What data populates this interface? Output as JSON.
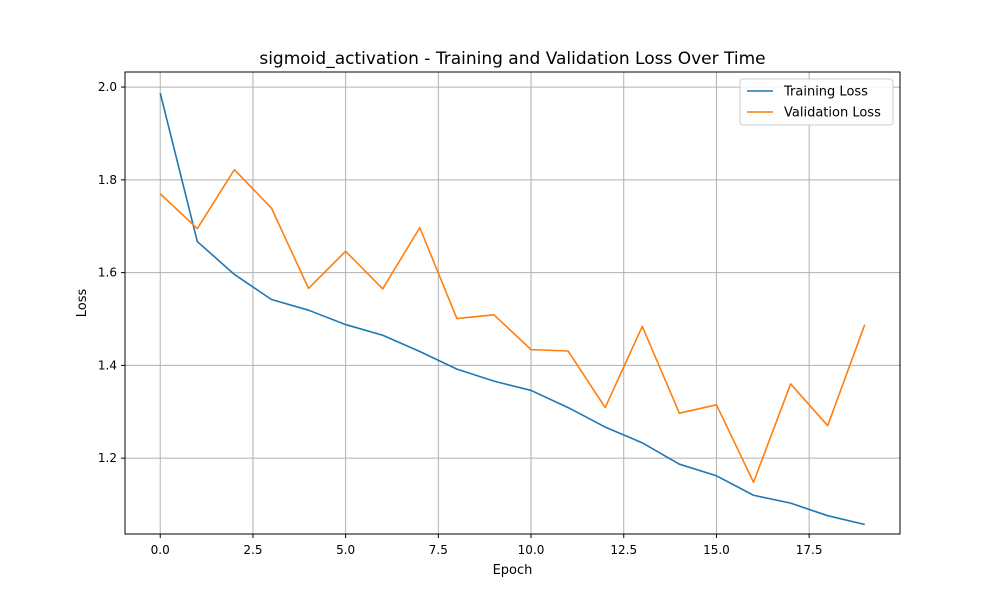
{
  "chart_data": {
    "type": "line",
    "title": "sigmoid_activation - Training and Validation Loss Over Time",
    "xlabel": "Epoch",
    "ylabel": "Loss",
    "xlim": [
      -0.95,
      19.95
    ],
    "ylim": [
      1.0365,
      2.0325
    ],
    "xticks": [
      0,
      2.5,
      5,
      7.5,
      10,
      12.5,
      15,
      17.5
    ],
    "xtick_labels": [
      "0.0",
      "2.5",
      "5.0",
      "7.5",
      "10.0",
      "12.5",
      "15.0",
      "17.5"
    ],
    "yticks": [
      1.2,
      1.4,
      1.6,
      1.8,
      2.0
    ],
    "ytick_labels": [
      "1.2",
      "1.4",
      "1.6",
      "1.8",
      "2.0"
    ],
    "grid": true,
    "legend": "top-right",
    "x": [
      0,
      1,
      2,
      3,
      4,
      5,
      6,
      7,
      8,
      9,
      10,
      11,
      12,
      13,
      14,
      15,
      16,
      17,
      18,
      19
    ],
    "series": [
      {
        "name": "Training Loss",
        "color": "#1f77b4",
        "values": [
          1.987,
          1.667,
          1.596,
          1.542,
          1.519,
          1.488,
          1.465,
          1.43,
          1.392,
          1.366,
          1.346,
          1.309,
          1.267,
          1.233,
          1.187,
          1.162,
          1.12,
          1.103,
          1.076,
          1.057
        ]
      },
      {
        "name": "Validation Loss",
        "color": "#ff7f0e",
        "values": [
          1.77,
          1.695,
          1.822,
          1.739,
          1.566,
          1.646,
          1.565,
          1.697,
          1.501,
          1.509,
          1.434,
          1.431,
          1.309,
          1.484,
          1.297,
          1.315,
          1.148,
          1.36,
          1.27,
          1.488
        ]
      }
    ]
  }
}
